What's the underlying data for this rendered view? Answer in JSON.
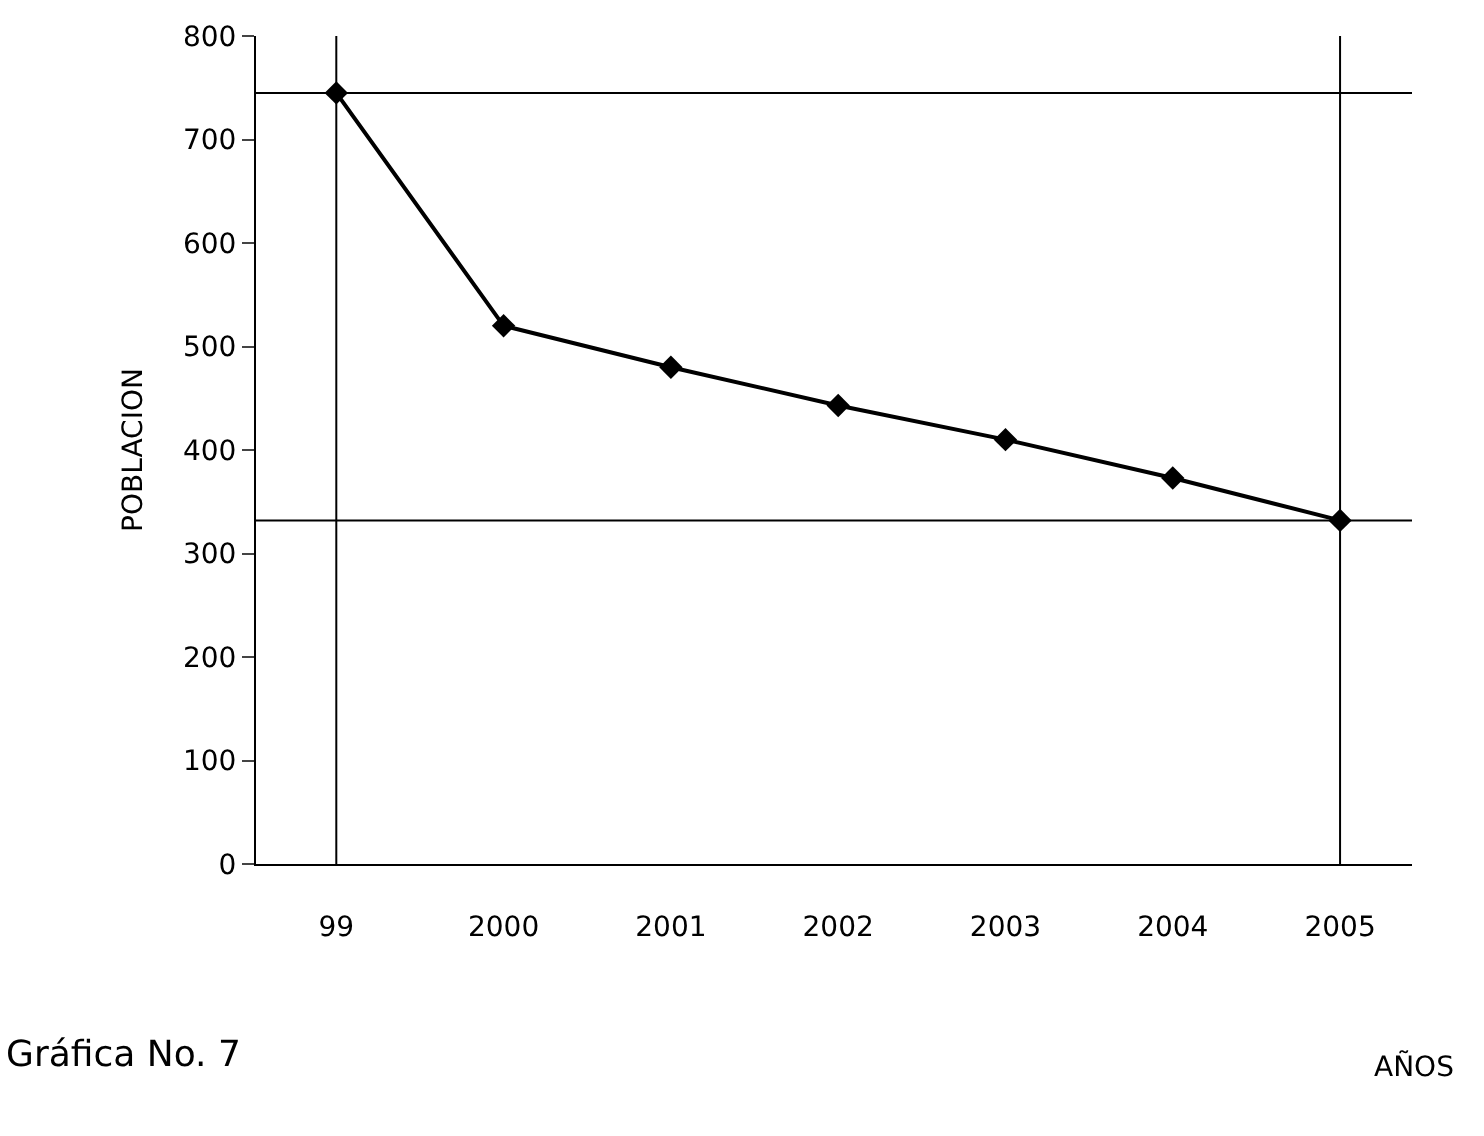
{
  "chart_data": {
    "type": "line",
    "categories": [
      "99",
      "2000",
      "2001",
      "2002",
      "2003",
      "2004",
      "2005"
    ],
    "series": [
      {
        "color": "#000000",
        "values": [
          745,
          520,
          480,
          443,
          410,
          373,
          332
        ]
      }
    ],
    "ylabel": "POBLACION",
    "xlabel": "AÑOS",
    "ylim": [
      0,
      800
    ],
    "yticks": [
      0,
      100,
      200,
      300,
      400,
      500,
      600,
      700,
      800
    ],
    "marker": "diamond",
    "line_style": "solid",
    "legend": false,
    "ref_lines": [
      {
        "axis": "y",
        "value": 745
      },
      {
        "axis": "y",
        "value": 332
      },
      {
        "axis": "x",
        "value": "99"
      },
      {
        "axis": "x",
        "value": "2005"
      }
    ],
    "annotations": [
      "Gráfica No. 7"
    ]
  }
}
